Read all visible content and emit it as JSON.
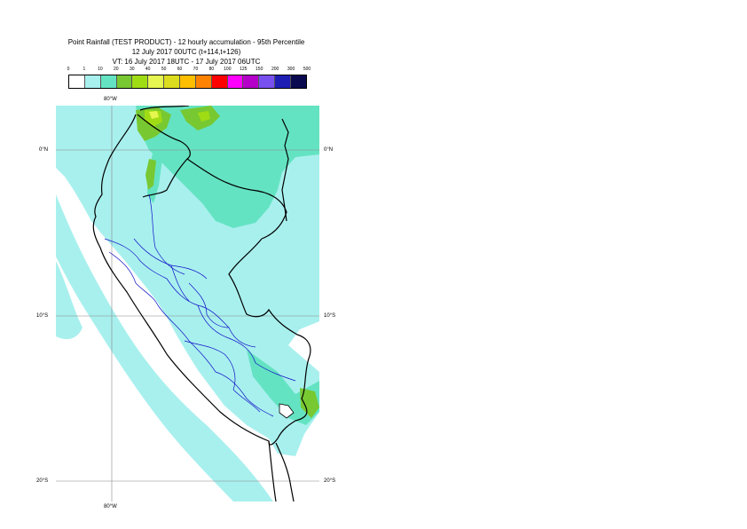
{
  "title": {
    "line1": "Point Rainfall (TEST PRODUCT) - 12 hourly accumulation - 95th Percentile",
    "line2": "12 July 2017 00UTC (t+114,t+126)",
    "line3": "VT: 16 July 2017 18UTC - 17 July 2017 06UTC"
  },
  "legend": {
    "thresholds": [
      "0",
      "1",
      "10",
      "20",
      "30",
      "40",
      "50",
      "60",
      "70",
      "80",
      "100",
      "125",
      "150",
      "200",
      "300",
      "500"
    ],
    "colors": [
      "#ffffff",
      "#a8f0ee",
      "#64e3c2",
      "#78c832",
      "#a0dc14",
      "#e6f550",
      "#dcdc1e",
      "#ffbe00",
      "#ff8200",
      "#ff0000",
      "#ff00ff",
      "#b400c8",
      "#7850f0",
      "#1e1eb4",
      "#0a0a50"
    ]
  },
  "map": {
    "colors": {
      "sea": "#ffffff",
      "light": "#a8f0ee",
      "medium": "#64e3c2",
      "green": "#78c832",
      "lime": "#a0dc14",
      "yellow": "#e6f550",
      "country_border": "#000000",
      "region_border": "#1010c8",
      "grid": "#888888"
    },
    "grid_labels": {
      "lon_top": "80°W",
      "lon_bottom": "80°W",
      "lat_0_left": "0°N",
      "lat_0_right": "0°N",
      "lat_10_left": "10°S",
      "lat_10_right": "10°S",
      "lat_20_left": "20°S",
      "lat_20_right": "20°S"
    }
  }
}
